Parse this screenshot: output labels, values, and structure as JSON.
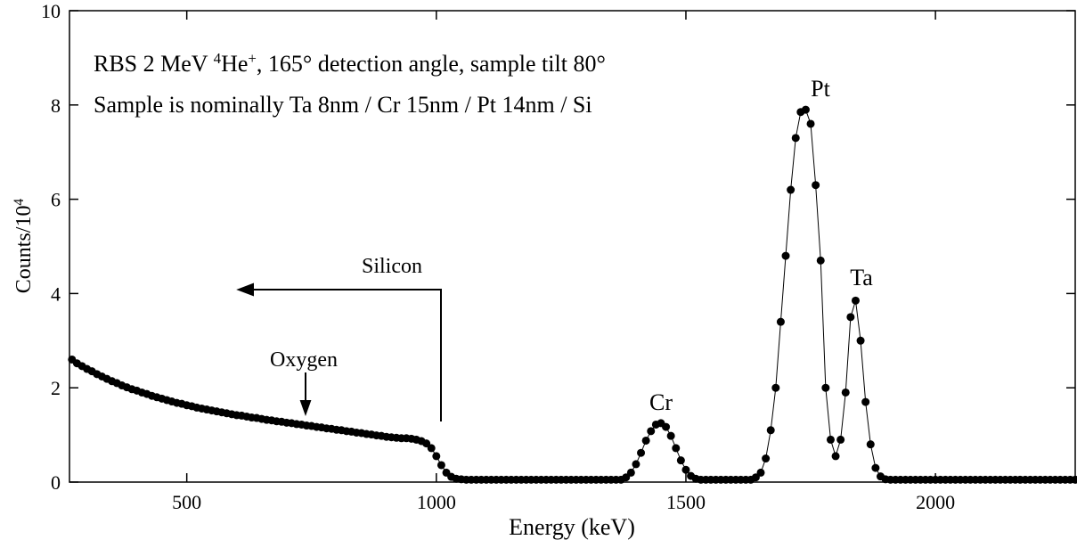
{
  "chart_data": {
    "type": "line",
    "title": [
      "RBS 2 MeV ",
      "4",
      "He",
      "+",
      ", 165° detection angle, sample tilt 80°"
    ],
    "subtitle": "Sample is nominally Ta 8nm / Cr 15nm / Pt 14nm / Si",
    "xlabel": "Energy (keV)",
    "ylabel": [
      "Counts/10",
      "4"
    ],
    "annotations": [
      "Silicon",
      "Oxygen",
      "Cr",
      "Pt",
      "Ta"
    ],
    "xlim": [
      265,
      2280
    ],
    "ylim": [
      0,
      10
    ],
    "xticks": [
      500,
      1000,
      1500,
      2000
    ],
    "yticks": [
      0,
      2,
      4,
      6,
      8,
      10
    ],
    "color": "#000000",
    "x": [
      270,
      280,
      290,
      300,
      310,
      320,
      330,
      340,
      350,
      360,
      370,
      380,
      390,
      400,
      410,
      420,
      430,
      440,
      450,
      460,
      470,
      480,
      490,
      500,
      510,
      520,
      530,
      540,
      550,
      560,
      570,
      580,
      590,
      600,
      610,
      620,
      630,
      640,
      650,
      660,
      670,
      680,
      690,
      700,
      710,
      720,
      730,
      740,
      750,
      760,
      770,
      780,
      790,
      800,
      810,
      820,
      830,
      840,
      850,
      860,
      870,
      880,
      890,
      900,
      910,
      920,
      930,
      940,
      950,
      960,
      970,
      980,
      990,
      1000,
      1010,
      1020,
      1030,
      1040,
      1050,
      1060,
      1070,
      1080,
      1090,
      1100,
      1110,
      1120,
      1130,
      1140,
      1150,
      1160,
      1170,
      1180,
      1190,
      1200,
      1210,
      1220,
      1230,
      1240,
      1250,
      1260,
      1270,
      1280,
      1290,
      1300,
      1310,
      1320,
      1330,
      1340,
      1350,
      1360,
      1370,
      1380,
      1390,
      1400,
      1410,
      1420,
      1430,
      1440,
      1450,
      1460,
      1470,
      1480,
      1490,
      1500,
      1510,
      1520,
      1530,
      1540,
      1550,
      1560,
      1570,
      1580,
      1590,
      1600,
      1610,
      1620,
      1630,
      1640,
      1650,
      1660,
      1670,
      1680,
      1690,
      1700,
      1710,
      1720,
      1730,
      1740,
      1750,
      1760,
      1770,
      1780,
      1790,
      1800,
      1810,
      1820,
      1830,
      1840,
      1850,
      1860,
      1870,
      1880,
      1890,
      1900,
      1910,
      1920,
      1930,
      1940,
      1950,
      1960,
      1970,
      1980,
      1990,
      2000,
      2010,
      2020,
      2030,
      2040,
      2050,
      2060,
      2070,
      2080,
      2090,
      2100,
      2110,
      2120,
      2130,
      2140,
      2150,
      2160,
      2170,
      2180,
      2190,
      2200,
      2210,
      2220,
      2230,
      2240,
      2250,
      2260,
      2270,
      2280
    ],
    "values": [
      2.6,
      2.52,
      2.46,
      2.4,
      2.35,
      2.29,
      2.24,
      2.19,
      2.14,
      2.1,
      2.05,
      2.01,
      1.97,
      1.94,
      1.9,
      1.87,
      1.83,
      1.8,
      1.77,
      1.74,
      1.71,
      1.68,
      1.66,
      1.63,
      1.61,
      1.58,
      1.56,
      1.54,
      1.52,
      1.5,
      1.48,
      1.46,
      1.44,
      1.42,
      1.41,
      1.39,
      1.37,
      1.36,
      1.34,
      1.32,
      1.31,
      1.29,
      1.28,
      1.26,
      1.25,
      1.23,
      1.22,
      1.2,
      1.19,
      1.17,
      1.16,
      1.14,
      1.13,
      1.11,
      1.1,
      1.08,
      1.07,
      1.05,
      1.04,
      1.02,
      1.01,
      0.99,
      0.98,
      0.96,
      0.95,
      0.94,
      0.93,
      0.93,
      0.92,
      0.9,
      0.87,
      0.82,
      0.72,
      0.55,
      0.36,
      0.2,
      0.11,
      0.07,
      0.06,
      0.05,
      0.05,
      0.05,
      0.05,
      0.05,
      0.05,
      0.05,
      0.05,
      0.05,
      0.05,
      0.05,
      0.05,
      0.05,
      0.05,
      0.05,
      0.05,
      0.05,
      0.05,
      0.05,
      0.05,
      0.05,
      0.05,
      0.05,
      0.05,
      0.05,
      0.05,
      0.05,
      0.05,
      0.05,
      0.05,
      0.05,
      0.05,
      0.1,
      0.2,
      0.38,
      0.62,
      0.88,
      1.08,
      1.22,
      1.25,
      1.17,
      0.98,
      0.72,
      0.46,
      0.26,
      0.13,
      0.07,
      0.05,
      0.05,
      0.05,
      0.05,
      0.05,
      0.05,
      0.05,
      0.05,
      0.05,
      0.05,
      0.05,
      0.1,
      0.2,
      0.5,
      1.1,
      2.0,
      3.4,
      4.8,
      6.2,
      7.3,
      7.85,
      7.9,
      7.6,
      6.3,
      4.7,
      2.0,
      0.9,
      0.55,
      0.9,
      1.9,
      3.5,
      3.85,
      3.0,
      1.7,
      0.8,
      0.3,
      0.12,
      0.06,
      0.05,
      0.05,
      0.05,
      0.05,
      0.05,
      0.05,
      0.05,
      0.05,
      0.05,
      0.05,
      0.05,
      0.05,
      0.05,
      0.05,
      0.05,
      0.05,
      0.05,
      0.05,
      0.05,
      0.05,
      0.05,
      0.05,
      0.05,
      0.05,
      0.05,
      0.05,
      0.05,
      0.05,
      0.05,
      0.05,
      0.05,
      0.05,
      0.05,
      0.05,
      0.05,
      0.05,
      0.05,
      0.05
    ]
  }
}
